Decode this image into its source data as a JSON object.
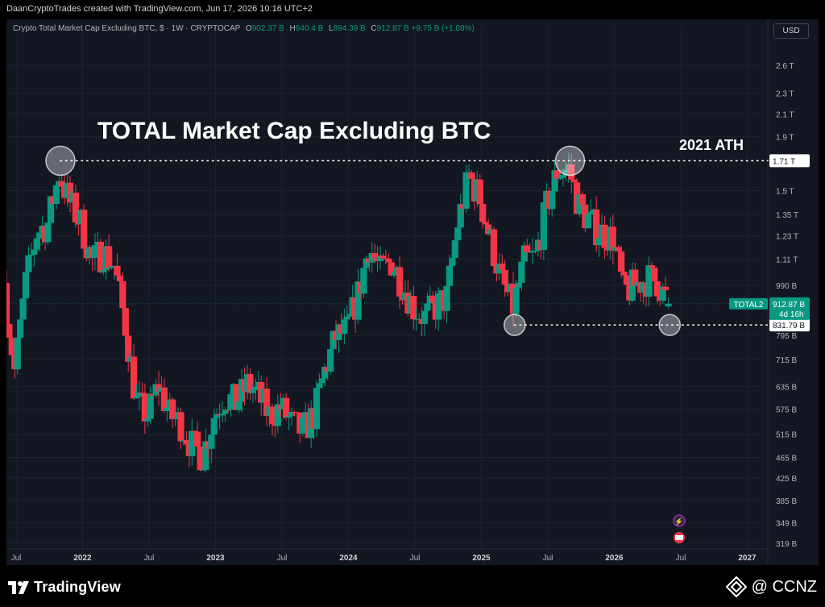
{
  "header": {
    "credit": "DaanCryptoTrades created with TradingView.com, Jun 17, 2026 10:16 UTC+2"
  },
  "legend": {
    "symbol": "Crypto Total Market Cap Excluding BTC, $ · 1W · CRYPTOCAP",
    "o_label": "O",
    "o_value": "902.37 B",
    "h_label": "H",
    "h_value": "940.4 B",
    "l_label": "L",
    "l_value": "894.39 B",
    "c_label": "C",
    "c_value": "912.87 B",
    "change": "+9.75 B (+1.08%)"
  },
  "currency_button": "USD",
  "colors": {
    "up": "#089981",
    "down": "#f23645",
    "background": "#131722",
    "grid": "#1e222d",
    "badge": "#089981"
  },
  "chart_data": {
    "type": "candlestick",
    "title": "TOTAL Market Cap Excluding BTC",
    "annotation": "2021 ATH",
    "y_scale": "log",
    "y_unit": "USD",
    "ylim": [
      315,
      3000
    ],
    "y_ticks": [
      "2.6 T",
      "2.3 T",
      "2.1 T",
      "1.9 T",
      "1.5 T",
      "1.35 T",
      "1.23 T",
      "1.11 T",
      "990 B",
      "795 B",
      "715 B",
      "635 B",
      "575 B",
      "515 B",
      "465 B",
      "425 B",
      "385 B",
      "349 B",
      "319 B"
    ],
    "y_tick_values": [
      2600,
      2300,
      2100,
      1900,
      1500,
      1350,
      1230,
      1110,
      990,
      795,
      715,
      635,
      575,
      515,
      465,
      425,
      385,
      349,
      319
    ],
    "x_ticks": [
      {
        "label": "Jul",
        "date": "2021-07"
      },
      {
        "label": "2022",
        "date": "2022-01"
      },
      {
        "label": "Jul",
        "date": "2022-07"
      },
      {
        "label": "2023",
        "date": "2023-01"
      },
      {
        "label": "Jul",
        "date": "2023-07"
      },
      {
        "label": "2024",
        "date": "2024-01"
      },
      {
        "label": "Jul",
        "date": "2024-07"
      },
      {
        "label": "2025",
        "date": "2025-01"
      },
      {
        "label": "Jul",
        "date": "2025-07"
      },
      {
        "label": "2026",
        "date": "2026-01"
      },
      {
        "label": "Jul",
        "date": "2026-07"
      },
      {
        "label": "2027",
        "date": "2027-01"
      }
    ],
    "x_range": [
      "2021-06",
      "2027-03"
    ],
    "reference_levels": [
      {
        "value": 1710,
        "label": "1.71 T"
      },
      {
        "value": 831.79,
        "label": "831.79 B"
      }
    ],
    "last_price": {
      "name": "TOTAL2",
      "value": 912.87,
      "label": "912.87 B",
      "countdown": "4d 16h"
    },
    "highlight_circles": [
      {
        "date": "2021-11",
        "value": 1710
      },
      {
        "date": "2025-09",
        "value": 1710
      },
      {
        "date": "2025-04",
        "value": 831.79
      },
      {
        "date": "2026-06",
        "value": 831.79
      }
    ],
    "weekly_close_path": [
      [
        "2021-06",
        1000
      ],
      [
        "2021-07",
        680
      ],
      [
        "2021-08",
        1000
      ],
      [
        "2021-09",
        1250
      ],
      [
        "2021-10",
        1300
      ],
      [
        "2021-11",
        1620
      ],
      [
        "2021-12",
        1420
      ],
      [
        "2022-01",
        1300
      ],
      [
        "2022-02",
        1100
      ],
      [
        "2022-03",
        1150
      ],
      [
        "2022-04",
        1080
      ],
      [
        "2022-05",
        830
      ],
      [
        "2022-06",
        590
      ],
      [
        "2022-07",
        560
      ],
      [
        "2022-08",
        640
      ],
      [
        "2022-09",
        560
      ],
      [
        "2022-10",
        540
      ],
      [
        "2022-11",
        490
      ],
      [
        "2022-12",
        470
      ],
      [
        "2023-01",
        560
      ],
      [
        "2023-02",
        610
      ],
      [
        "2023-03",
        590
      ],
      [
        "2023-04",
        640
      ],
      [
        "2023-05",
        610
      ],
      [
        "2023-06",
        560
      ],
      [
        "2023-07",
        580
      ],
      [
        "2023-08",
        540
      ],
      [
        "2023-09",
        520
      ],
      [
        "2023-10",
        560
      ],
      [
        "2023-11",
        680
      ],
      [
        "2023-12",
        790
      ],
      [
        "2024-01",
        810
      ],
      [
        "2024-02",
        950
      ],
      [
        "2024-03",
        1180
      ],
      [
        "2024-04",
        1050
      ],
      [
        "2024-05",
        1100
      ],
      [
        "2024-06",
        1000
      ],
      [
        "2024-07",
        900
      ],
      [
        "2024-08",
        860
      ],
      [
        "2024-09",
        900
      ],
      [
        "2024-10",
        940
      ],
      [
        "2024-11",
        1300
      ],
      [
        "2024-12",
        1600
      ],
      [
        "2025-01",
        1450
      ],
      [
        "2025-02",
        1200
      ],
      [
        "2025-03",
        1000
      ],
      [
        "2025-04",
        900
      ],
      [
        "2025-05",
        1100
      ],
      [
        "2025-06",
        1120
      ],
      [
        "2025-07",
        1400
      ],
      [
        "2025-08",
        1630
      ],
      [
        "2025-09",
        1650
      ],
      [
        "2025-10",
        1400
      ],
      [
        "2025-11",
        1300
      ],
      [
        "2025-12",
        1250
      ],
      [
        "2026-01",
        1220
      ],
      [
        "2026-02",
        960
      ],
      [
        "2026-03",
        990
      ],
      [
        "2026-04",
        1020
      ],
      [
        "2026-05",
        1010
      ],
      [
        "2026-06",
        912.87
      ]
    ]
  },
  "footer": {
    "brand": "TradingView",
    "handle": "@ CCNZ"
  }
}
